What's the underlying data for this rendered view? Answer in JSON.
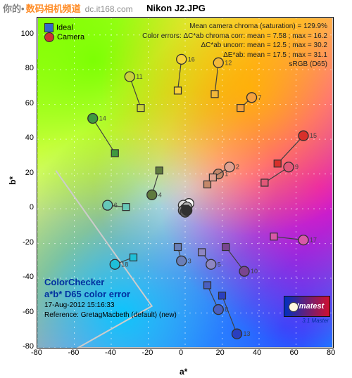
{
  "watermark": {
    "p1": "你的•",
    "p2": "数码相机频道",
    "p3": "dc.it168.com"
  },
  "title": "Nikon J2.JPG",
  "chart": {
    "type": "scatter-colorchecker",
    "xlim": [
      -80,
      80
    ],
    "ylim": [
      -80,
      110
    ],
    "xtick_step": 20,
    "ytick_step": 20,
    "xlabel": "a*",
    "ylabel": "b*",
    "gamut_poly": [
      [
        -80,
        86
      ],
      [
        -80,
        110
      ],
      [
        80,
        110
      ],
      [
        80,
        -80
      ],
      [
        -58,
        -80
      ],
      [
        -18,
        -56
      ],
      [
        -70,
        22
      ]
    ],
    "grid_color": "#ffffff",
    "points": [
      {
        "n": 1,
        "ideal": [
          12,
          14
        ],
        "cam": [
          18,
          20
        ],
        "color": "#c4886a"
      },
      {
        "n": 2,
        "ideal": [
          15,
          18
        ],
        "cam": [
          24,
          24
        ],
        "color": "#e0a190"
      },
      {
        "n": 3,
        "ideal": [
          -4,
          -22
        ],
        "cam": [
          -2,
          -30
        ],
        "color": "#6a7fb8"
      },
      {
        "n": 4,
        "ideal": [
          -14,
          22
        ],
        "cam": [
          -18,
          8
        ],
        "color": "#5f7a3e"
      },
      {
        "n": 5,
        "ideal": [
          9,
          -25
        ],
        "cam": [
          14,
          -32
        ],
        "color": "#8e86c2"
      },
      {
        "n": 6,
        "ideal": [
          -32,
          1
        ],
        "cam": [
          -42,
          2
        ],
        "color": "#66c8b8"
      },
      {
        "n": 7,
        "ideal": [
          30,
          58
        ],
        "cam": [
          36,
          64
        ],
        "color": "#f5a23c"
      },
      {
        "n": 8,
        "ideal": [
          12,
          -44
        ],
        "cam": [
          18,
          -58
        ],
        "color": "#4a5fc0"
      },
      {
        "n": 9,
        "ideal": [
          43,
          15
        ],
        "cam": [
          56,
          24
        ],
        "color": "#e25878"
      },
      {
        "n": 10,
        "ideal": [
          22,
          -22
        ],
        "cam": [
          32,
          -36
        ],
        "color": "#7a4590"
      },
      {
        "n": 11,
        "ideal": [
          -24,
          58
        ],
        "cam": [
          -30,
          76
        ],
        "color": "#c8d23c"
      },
      {
        "n": 12,
        "ideal": [
          16,
          66
        ],
        "cam": [
          18,
          84
        ],
        "color": "#f2b83a"
      },
      {
        "n": 13,
        "ideal": [
          20,
          -50
        ],
        "cam": [
          28,
          -72
        ],
        "color": "#2a3fbf"
      },
      {
        "n": 14,
        "ideal": [
          -38,
          32
        ],
        "cam": [
          -50,
          52
        ],
        "color": "#3f9a3f"
      },
      {
        "n": 15,
        "ideal": [
          50,
          26
        ],
        "cam": [
          64,
          42
        ],
        "color": "#d8302a"
      },
      {
        "n": 16,
        "ideal": [
          -4,
          68
        ],
        "cam": [
          -2,
          86
        ],
        "color": "#f8d23c"
      },
      {
        "n": 17,
        "ideal": [
          48,
          -16
        ],
        "cam": [
          64,
          -18
        ],
        "color": "#d858a8"
      },
      {
        "n": 18,
        "ideal": [
          -28,
          -28
        ],
        "cam": [
          -38,
          -32
        ],
        "color": "#1fbfd8"
      },
      {
        "n": 19,
        "ideal": [
          0,
          0
        ],
        "cam": [
          2,
          3
        ],
        "color": "#fafafa"
      },
      {
        "n": 20,
        "ideal": [
          0,
          0
        ],
        "cam": [
          -1,
          2
        ],
        "color": "#dcdcdc"
      },
      {
        "n": 21,
        "ideal": [
          0,
          0
        ],
        "cam": [
          1,
          1
        ],
        "color": "#b4b4b4"
      },
      {
        "n": 22,
        "ideal": [
          0,
          0
        ],
        "cam": [
          -1,
          -1
        ],
        "color": "#888888"
      },
      {
        "n": 23,
        "ideal": [
          0,
          0
        ],
        "cam": [
          0,
          -2
        ],
        "color": "#585858"
      },
      {
        "n": 24,
        "ideal": [
          0,
          0
        ],
        "cam": [
          1,
          -1
        ],
        "color": "#303030"
      }
    ]
  },
  "legend": {
    "ideal": "Ideal",
    "camera": "Camera",
    "ideal_color": "#3366cc",
    "camera_color": "#cc3333"
  },
  "stats": {
    "l1": "Mean camera chroma (saturation) = 129.9%",
    "l2": "Color errors: ΔC*ab chroma corr:  mean = 7.58 ;  max = 16.2",
    "l3": "ΔC*ab uncorr:  mean = 12.5 ;  max = 30.2",
    "l4": "ΔE*ab:  mean = 17.5 ;  max = 31.1",
    "l5": "sRGB (D65)"
  },
  "bottomleft": {
    "l1": "ColorChecker",
    "l2": "a*b* D65 color error",
    "l3": "17-Aug-2012 15:16:33",
    "l4": "Reference: GretagMacbeth (default) (new)"
  },
  "imatest": {
    "brand": "Imatest",
    "sub": "3.1  Master"
  }
}
